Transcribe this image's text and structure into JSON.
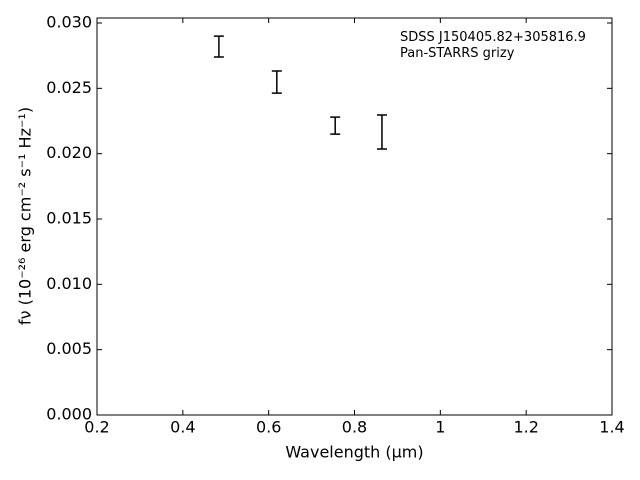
{
  "chart_data": {
    "type": "errorbar",
    "xlabel": "Wavelength (μm)",
    "ylabel": "fν (10⁻²⁶ erg cm⁻² s⁻¹ Hz⁻¹)",
    "annotations": [
      "SDSS J150405.82+305816.9",
      "Pan-STARRS grizy"
    ],
    "x": [
      0.484,
      0.619,
      0.755,
      0.864
    ],
    "values": [
      0.0282,
      0.02548,
      0.02215,
      0.02166
    ],
    "errors": [
      0.0008,
      0.00085,
      0.00065,
      0.0013
    ],
    "color": "#000000",
    "xlim": [
      0.2,
      1.4
    ],
    "ylim": [
      0,
      0.03
    ],
    "xticks": [
      0.2,
      0.4,
      0.6,
      0.8,
      1.0,
      1.2,
      1.4
    ],
    "yticks": [
      {
        "value": 0,
        "label": "0.000"
      },
      {
        "value": 0.005,
        "label": "0.005"
      },
      {
        "value": 0.01,
        "label": "0.010"
      },
      {
        "value": 0.015,
        "label": "0.015"
      },
      {
        "value": 0.02,
        "label": "0.020"
      },
      {
        "value": 0.025,
        "label": "0.025"
      },
      {
        "value": 0.03,
        "label": "0.030"
      }
    ],
    "grid": false
  }
}
